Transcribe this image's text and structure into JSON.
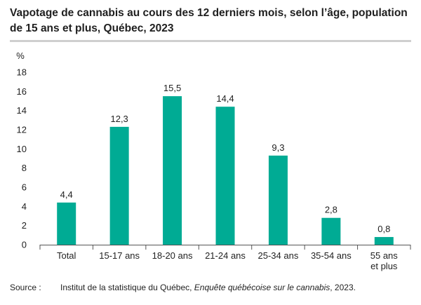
{
  "chart_data": {
    "type": "bar",
    "title": "Vapotage de cannabis au cours des 12 derniers mois, selon l’âge, population de 15 ans et plus, Québec, 2023",
    "ylabel": "%",
    "xlabel": "",
    "ylim": [
      0,
      18
    ],
    "yticks": [
      0,
      2,
      4,
      6,
      8,
      10,
      12,
      14,
      16,
      18
    ],
    "grid": false,
    "legend": "none",
    "categories": [
      [
        "Total"
      ],
      [
        "15-17 ans"
      ],
      [
        "18-20 ans"
      ],
      [
        "21-24 ans"
      ],
      [
        "25-34 ans"
      ],
      [
        "35-54 ans"
      ],
      [
        "55 ans",
        "et plus"
      ]
    ],
    "values": [
      4.4,
      12.3,
      15.5,
      14.4,
      9.3,
      2.8,
      0.8
    ],
    "value_labels": [
      "4,4",
      "12,3",
      "15,5",
      "14,4",
      "9,3",
      "2,8",
      "0,8"
    ],
    "bar_color": "#00ab94"
  },
  "source": {
    "label": "Source :",
    "text_before": "Institut de la statistique du Québec, ",
    "text_italic": "Enquête québécoise sur le cannabis",
    "text_after": ", 2023."
  }
}
